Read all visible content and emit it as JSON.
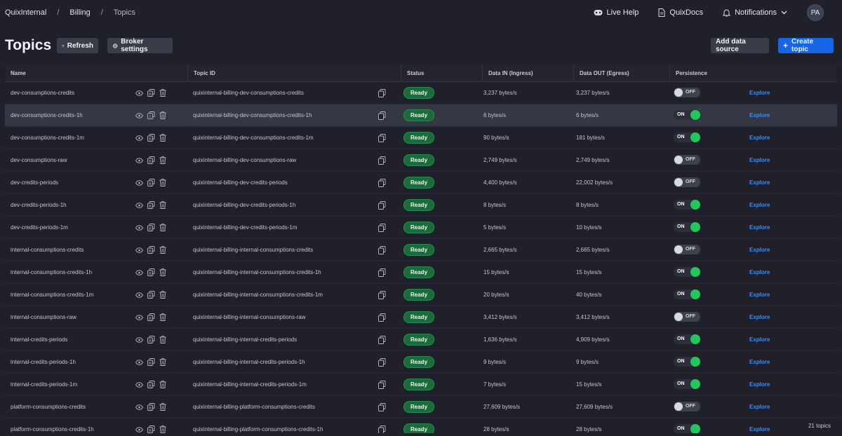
{
  "breadcrumb": {
    "org": "QuixInternal",
    "project": "Billing",
    "page": "Topics",
    "separator": "/"
  },
  "toplinks": {
    "live_help": "Live Help",
    "docs": "QuixDocs",
    "notifications": "Notifications",
    "avatar": "PA"
  },
  "page": {
    "title": "Topics"
  },
  "buttons": {
    "refresh": "Refresh",
    "broker_settings": "Broker settings",
    "add_data_source": "Add data source",
    "create_topic": "Create topic"
  },
  "table": {
    "headers": {
      "name": "Name",
      "topic_id": "Topic ID",
      "status": "Status",
      "data_in": "Data IN (Ingress)",
      "data_out": "Data OUT (Egress)",
      "persistence": "Persistence"
    },
    "explore_label": "Explore",
    "rows": [
      {
        "name": "dev-consumptions-credits",
        "topic_id": "quixinternal-billing-dev-consumptions-credits",
        "status": "Ready",
        "data_in": "3,237 bytes/s",
        "data_out": "3,237 bytes/s",
        "persistence": "OFF"
      },
      {
        "name": "dev-consumptions-credits-1h",
        "topic_id": "quixinternal-billing-dev-consumptions-credits-1h",
        "status": "Ready",
        "data_in": "6 bytes/s",
        "data_out": "6 bytes/s",
        "persistence": "ON"
      },
      {
        "name": "dev-consumptions-credits-1m",
        "topic_id": "quixinternal-billing-dev-consumptions-credits-1m",
        "status": "Ready",
        "data_in": "90 bytes/s",
        "data_out": "181 bytes/s",
        "persistence": "ON"
      },
      {
        "name": "dev-consumptions-raw",
        "topic_id": "quixinternal-billing-dev-consumptions-raw",
        "status": "Ready",
        "data_in": "2,749 bytes/s",
        "data_out": "2,749 bytes/s",
        "persistence": "OFF"
      },
      {
        "name": "dev-credits-periods",
        "topic_id": "quixinternal-billing-dev-credits-periods",
        "status": "Ready",
        "data_in": "4,400 bytes/s",
        "data_out": "22,002 bytes/s",
        "persistence": "OFF"
      },
      {
        "name": "dev-credits-periods-1h",
        "topic_id": "quixinternal-billing-dev-credits-periods-1h",
        "status": "Ready",
        "data_in": "8 bytes/s",
        "data_out": "8 bytes/s",
        "persistence": "ON"
      },
      {
        "name": "dev-credits-periods-1m",
        "topic_id": "quixinternal-billing-dev-credits-periods-1m",
        "status": "Ready",
        "data_in": "5 bytes/s",
        "data_out": "10 bytes/s",
        "persistence": "ON"
      },
      {
        "name": "internal-consumptions-credits",
        "topic_id": "quixinternal-billing-internal-consumptions-credits",
        "status": "Ready",
        "data_in": "2,665 bytes/s",
        "data_out": "2,665 bytes/s",
        "persistence": "OFF"
      },
      {
        "name": "internal-consumptions-credits-1h",
        "topic_id": "quixinternal-billing-internal-consumptions-credits-1h",
        "status": "Ready",
        "data_in": "15 bytes/s",
        "data_out": "15 bytes/s",
        "persistence": "ON"
      },
      {
        "name": "internal-consumptions-credits-1m",
        "topic_id": "quixinternal-billing-internal-consumptions-credits-1m",
        "status": "Ready",
        "data_in": "20 bytes/s",
        "data_out": "40 bytes/s",
        "persistence": "ON"
      },
      {
        "name": "internal-consumptions-raw",
        "topic_id": "quixinternal-billing-internal-consumptions-raw",
        "status": "Ready",
        "data_in": "3,412 bytes/s",
        "data_out": "3,412 bytes/s",
        "persistence": "OFF"
      },
      {
        "name": "internal-credits-periods",
        "topic_id": "quixinternal-billing-internal-credits-periods",
        "status": "Ready",
        "data_in": "1,636 bytes/s",
        "data_out": "4,909 bytes/s",
        "persistence": "ON"
      },
      {
        "name": "internal-credits-periods-1h",
        "topic_id": "quixinternal-billing-internal-credits-periods-1h",
        "status": "Ready",
        "data_in": "9 bytes/s",
        "data_out": "9 bytes/s",
        "persistence": "ON"
      },
      {
        "name": "internal-credits-periods-1m",
        "topic_id": "quixinternal-billing-internal-credits-periods-1m",
        "status": "Ready",
        "data_in": "7 bytes/s",
        "data_out": "15 bytes/s",
        "persistence": "ON"
      },
      {
        "name": "platform-consumptions-credits",
        "topic_id": "quixinternal-billing-platform-consumptions-credits",
        "status": "Ready",
        "data_in": "27,609 bytes/s",
        "data_out": "27,609 bytes/s",
        "persistence": "OFF"
      },
      {
        "name": "platform-consumptions-credits-1h",
        "topic_id": "quixinternal-billing-platform-consumptions-credits-1h",
        "status": "Ready",
        "data_in": "28 bytes/s",
        "data_out": "28 bytes/s",
        "persistence": "ON"
      }
    ],
    "selected_row_index": 1
  },
  "footer": {
    "count": "21 topics"
  },
  "colors": {
    "background": "#1f2029",
    "primary": "#1565e6",
    "ready_badge": "#1b6b3a",
    "toggle_on": "#22c55e",
    "explore_link": "#3b8bff"
  },
  "icons": {
    "view": "eye-icon",
    "duplicate": "copy-icon",
    "delete": "trash-icon",
    "copy_id": "copy-icon"
  }
}
